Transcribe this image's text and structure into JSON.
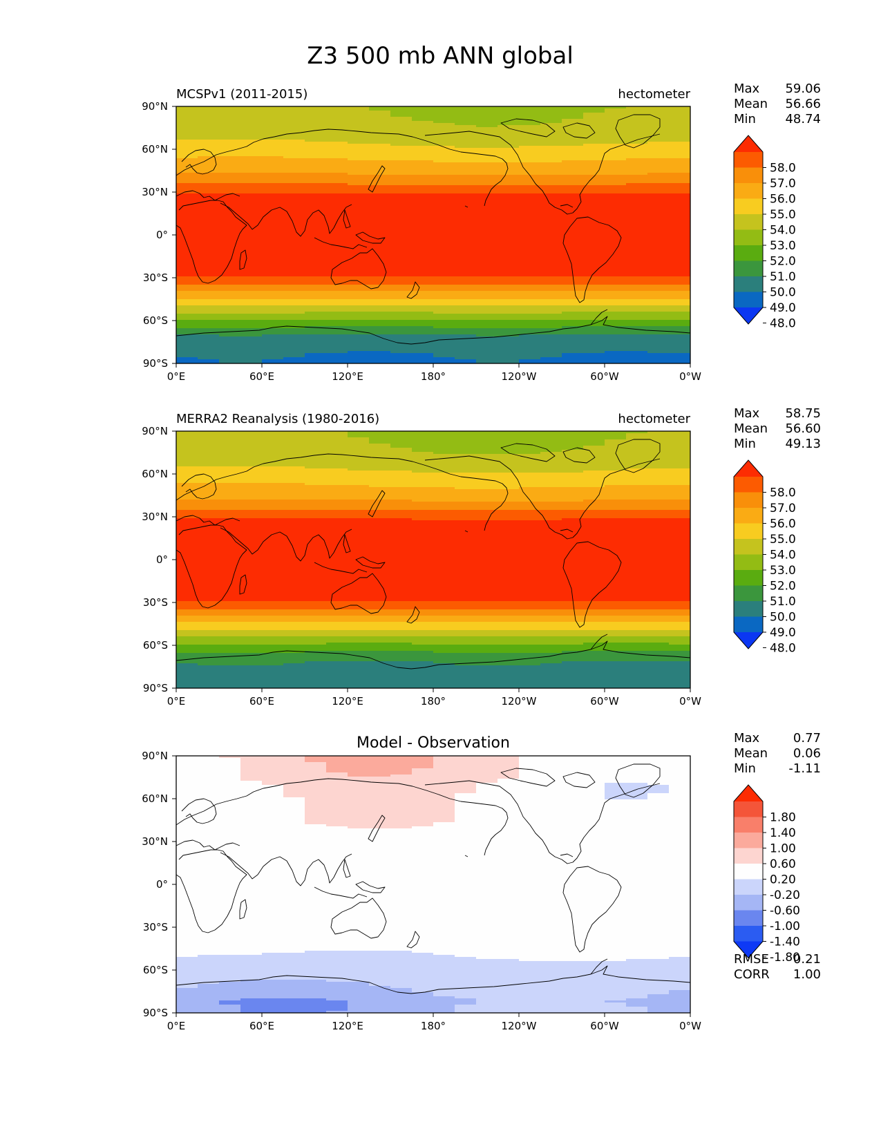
{
  "title": "Z3 500 mb ANN global",
  "colors": {
    "levels_main": [
      "#0b37f2",
      "#0a68c2",
      "#2b7f7c",
      "#3b963d",
      "#5aac10",
      "#93bc14",
      "#c5c31e",
      "#f8cc20",
      "#faab14",
      "#f98f0a",
      "#fc5b01",
      "#fd2c02"
    ],
    "levels_diff": [
      "#0e39f5",
      "#2b5cf2",
      "#6a86ef",
      "#a5b6f5",
      "#cbd5fb",
      "#fefefe",
      "#fdd5d0",
      "#fbaa9c",
      "#f97f6a",
      "#f45539",
      "#fd2c02"
    ]
  },
  "axes": {
    "lat_ticks": [
      "90°N",
      "60°N",
      "30°N",
      "0°",
      "30°S",
      "60°S",
      "90°S"
    ],
    "lon_ticks": [
      "0°E",
      "60°E",
      "120°E",
      "180°",
      "120°W",
      "60°W",
      "0°W"
    ]
  },
  "stats_labels": {
    "max": "Max",
    "mean": "Mean",
    "min": "Min",
    "rmse": "RMSE",
    "corr": "CORR"
  },
  "panels": [
    {
      "left_title": "MCSPv1 (2011-2015)",
      "right_title": "hectometer",
      "center_title": "",
      "stats": {
        "max": "59.06",
        "mean": "56.66",
        "min": "48.74"
      },
      "colorbar_ticks": [
        "58.0",
        "57.0",
        "56.0",
        "55.0",
        "54.0",
        "53.0",
        "52.0",
        "51.0",
        "50.0",
        "49.0",
        "48.0"
      ],
      "colormap": "levels_main"
    },
    {
      "left_title": "MERRA2 Reanalysis (1980-2016)",
      "right_title": "hectometer",
      "center_title": "",
      "stats": {
        "max": "58.75",
        "mean": "56.60",
        "min": "49.13"
      },
      "colorbar_ticks": [
        "58.0",
        "57.0",
        "56.0",
        "55.0",
        "54.0",
        "53.0",
        "52.0",
        "51.0",
        "50.0",
        "49.0",
        "48.0"
      ],
      "colormap": "levels_main"
    },
    {
      "left_title": "",
      "right_title": "",
      "center_title": "Model - Observation",
      "stats": {
        "max": "0.77",
        "mean": "0.06",
        "min": "-1.11",
        "rmse": "0.21",
        "corr": "1.00"
      },
      "colorbar_ticks": [
        "1.80",
        "1.40",
        "1.00",
        "0.60",
        "0.20",
        "-0.20",
        "-0.60",
        "-1.00",
        "-1.40",
        "-1.80"
      ],
      "colormap": "levels_diff"
    }
  ],
  "chart_data": [
    {
      "type": "heatmap",
      "title": "MCSPv1 (2011-2015)",
      "units": "hectometer",
      "xlim": [
        0,
        360
      ],
      "ylim": [
        -90,
        90
      ],
      "levels": [
        48,
        49,
        50,
        51,
        52,
        53,
        54,
        55,
        56,
        57,
        58
      ],
      "max": 59.06,
      "mean": 56.66,
      "min": 48.74,
      "zonal_profile_lat": [
        90,
        75,
        65,
        55,
        45,
        37,
        33,
        27,
        0,
        -27,
        -33,
        -37,
        -42,
        -47,
        -52,
        -57,
        -62,
        -67,
        -72,
        -80,
        -87,
        -90
      ],
      "zonal_profile_z3": [
        53.0,
        53.3,
        53.9,
        54.8,
        55.7,
        56.7,
        57.5,
        58.3,
        58.8,
        58.3,
        57.5,
        56.6,
        55.5,
        54.5,
        53.5,
        52.5,
        51.5,
        50.5,
        49.6,
        49.3,
        48.8,
        48.8
      ]
    },
    {
      "type": "heatmap",
      "title": "MERRA2 Reanalysis (1980-2016)",
      "units": "hectometer",
      "xlim": [
        0,
        360
      ],
      "ylim": [
        -90,
        90
      ],
      "levels": [
        48,
        49,
        50,
        51,
        52,
        53,
        54,
        55,
        56,
        57,
        58
      ],
      "max": 58.75,
      "mean": 56.6,
      "min": 49.13,
      "zonal_profile_lat": [
        90,
        75,
        65,
        55,
        45,
        37,
        33,
        27,
        0,
        -27,
        -33,
        -37,
        -42,
        -47,
        -52,
        -57,
        -62,
        -67,
        -72,
        -80,
        -87,
        -90
      ],
      "zonal_profile_z3": [
        52.9,
        53.2,
        53.8,
        54.7,
        55.6,
        56.6,
        57.4,
        58.2,
        58.7,
        58.2,
        57.4,
        56.5,
        55.4,
        54.4,
        53.4,
        52.4,
        51.4,
        50.6,
        50.0,
        49.5,
        49.4,
        49.4
      ]
    },
    {
      "type": "heatmap",
      "title": "Model - Observation",
      "xlim": [
        0,
        360
      ],
      "ylim": [
        -90,
        90
      ],
      "levels": [
        -1.8,
        -1.4,
        -1.0,
        -0.6,
        -0.2,
        0.2,
        0.6,
        1.0,
        1.4,
        1.8
      ],
      "max": 0.77,
      "mean": 0.06,
      "min": -1.11,
      "rmse": 0.21,
      "corr": 1.0,
      "zonal_profile_lat": [
        90,
        75,
        70,
        60,
        45,
        30,
        0,
        -30,
        -45,
        -55,
        -65,
        -75,
        -82,
        -90
      ],
      "zonal_profile_diff": [
        0.3,
        0.25,
        0.1,
        0.05,
        0.1,
        0.05,
        0.0,
        0.05,
        -0.1,
        -0.3,
        -0.4,
        -0.6,
        -0.8,
        -0.7
      ]
    }
  ]
}
